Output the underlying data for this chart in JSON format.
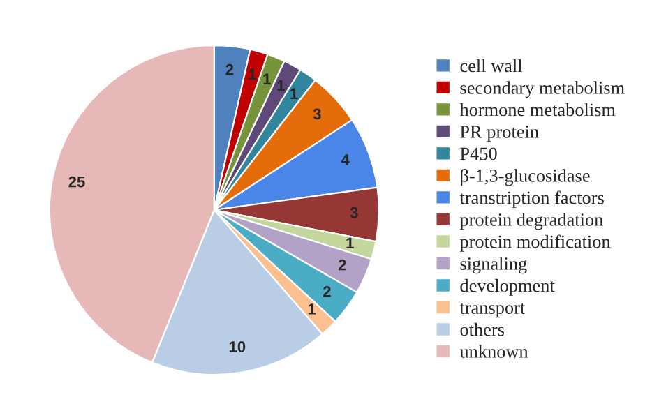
{
  "chart_data": {
    "type": "pie",
    "categories": [
      "cell wall",
      "secondary metabolism",
      "hormone metabolism",
      "PR protein",
      "P450",
      "β-1,3-glucosidase",
      "transtription factors",
      "protein degradation",
      "protein modification",
      "signaling",
      "development",
      "transport",
      "others",
      "unknown"
    ],
    "values": [
      2,
      1,
      1,
      1,
      1,
      3,
      4,
      3,
      1,
      2,
      2,
      1,
      10,
      25
    ],
    "colors": [
      "#4f81bd",
      "#c00000",
      "#77933c",
      "#5f497a",
      "#31859c",
      "#e46c0a",
      "#4a86e8",
      "#953735",
      "#c3d69b",
      "#b3a2c7",
      "#4bacc6",
      "#fac090",
      "#b9cde5",
      "#e6b9b8"
    ],
    "data_labels": true,
    "legend": "right"
  }
}
